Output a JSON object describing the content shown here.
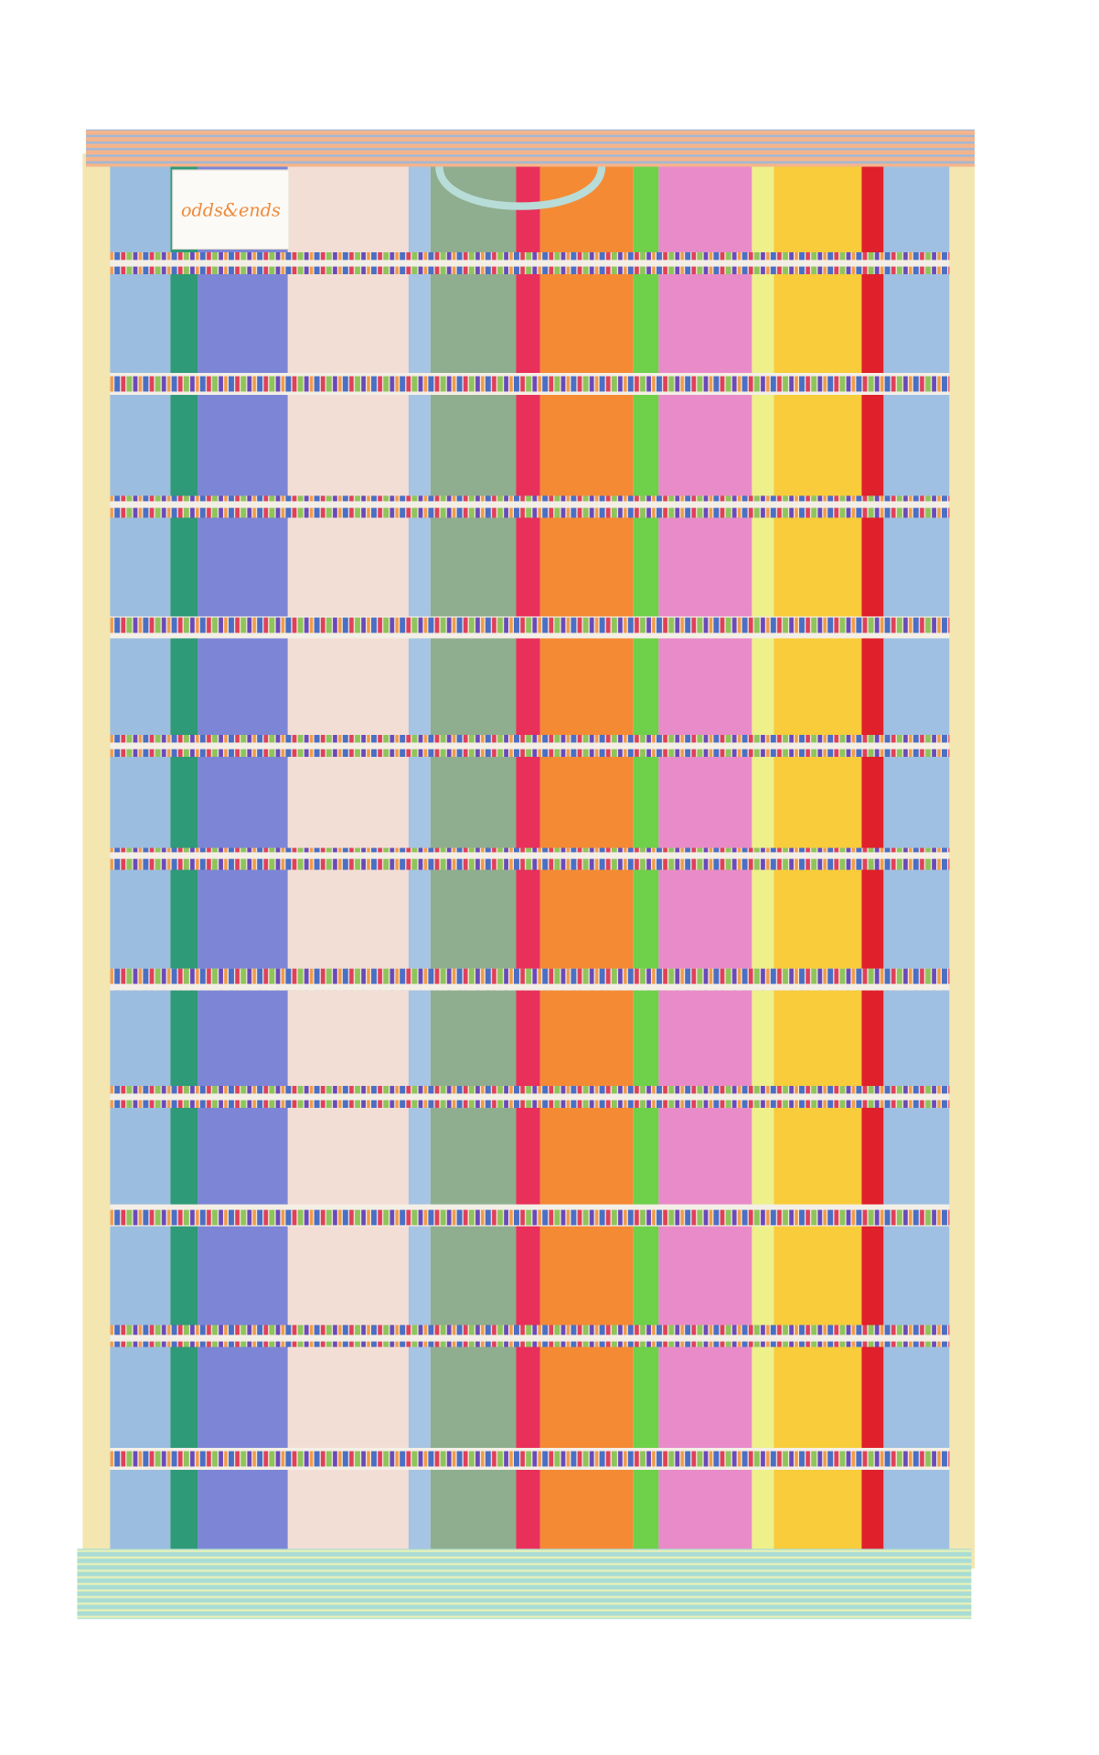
{
  "label": {
    "text": "odds&ends"
  }
}
